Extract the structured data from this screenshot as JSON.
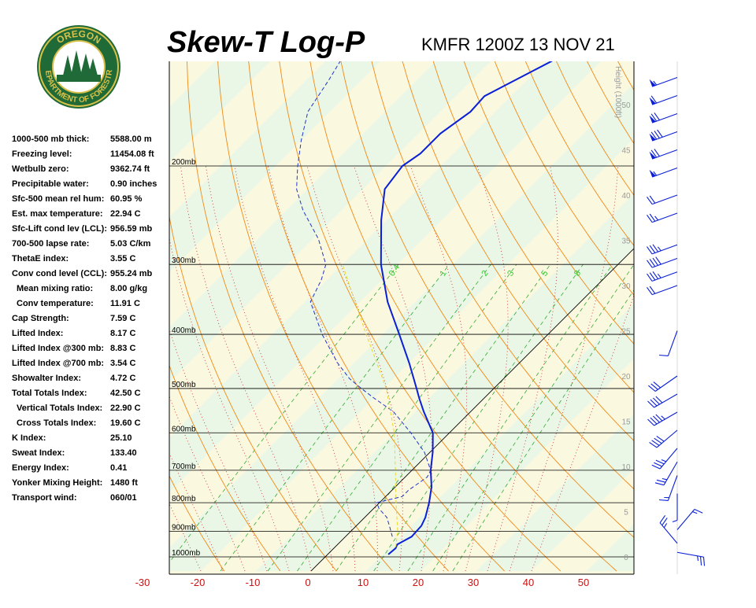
{
  "header": {
    "title": "Skew-T Log-P",
    "station_line": "KMFR 1200Z 13 NOV 21"
  },
  "logo": {
    "top_text": "OREGON",
    "bottom_text": "DEPARTMENT OF FORESTRY",
    "colors": {
      "ring": "#1f6a36",
      "gold": "#d8c04a",
      "inner": "#ffffff"
    }
  },
  "indices": [
    {
      "label": "1000-500 mb thick:",
      "value": "5588.00 m"
    },
    {
      "label": "Freezing level:",
      "value": "11454.08 ft"
    },
    {
      "label": "Wetbulb zero:",
      "value": "9362.74 ft"
    },
    {
      "label": "Precipitable water:",
      "value": "0.90 inches"
    },
    {
      "label": "Sfc-500 mean rel hum:",
      "value": "60.95 %"
    },
    {
      "label": "Est. max temperature:",
      "value": "22.94 C"
    },
    {
      "label": "Sfc-Lift cond lev (LCL):",
      "value": "956.59 mb"
    },
    {
      "label": "700-500 lapse rate:",
      "value": "5.03 C/km"
    },
    {
      "label": "ThetaE index:",
      "value": "3.55 C"
    },
    {
      "label": "Conv cond level (CCL):",
      "value": "955.24 mb"
    },
    {
      "label": "Mean mixing ratio:",
      "value": "8.00 g/kg",
      "indent": true
    },
    {
      "label": "Conv temperature:",
      "value": "11.91 C",
      "indent": true
    },
    {
      "label": "Cap Strength:",
      "value": "7.59 C"
    },
    {
      "label": "Lifted Index:",
      "value": "8.17 C"
    },
    {
      "label": "Lifted Index @300 mb:",
      "value": "8.83 C"
    },
    {
      "label": "Lifted Index @700 mb:",
      "value": "3.54 C"
    },
    {
      "label": "Showalter Index:",
      "value": "4.72 C"
    },
    {
      "label": "Total Totals Index:",
      "value": "42.50 C"
    },
    {
      "label": "Vertical Totals Index:",
      "value": "22.90 C",
      "indent": true
    },
    {
      "label": "Cross Totals Index:",
      "value": "19.60 C",
      "indent": true
    },
    {
      "label": "K Index:",
      "value": "25.10"
    },
    {
      "label": "Sweat Index:",
      "value": "133.40"
    },
    {
      "label": "Energy Index:",
      "value": "0.41"
    },
    {
      "label": "Yonker Mixing Height:",
      "value": "1480 ft"
    },
    {
      "label": "Transport wind:",
      "value": "060/01"
    }
  ],
  "colors": {
    "temperature": "#0a1fd6",
    "dewpoint": "#2233cc",
    "parcel": "#e6d92a",
    "dry_adiabat": "#f08a16",
    "moist_adiabat": "#cc2222",
    "mixing_ratio": "#33aa33",
    "isobar": "#000000",
    "band_green": "#eaf7e6",
    "band_yellow": "#fbf8e0",
    "wind_barb": "#0a1fd6",
    "height_axis": "#9a9a9a"
  },
  "chart_data": {
    "type": "line",
    "title": "Skew-T Log-P",
    "subtitle": "KMFR 1200Z 13 NOV 21",
    "pressure_levels": [
      1000,
      900,
      800,
      700,
      600,
      500,
      400,
      300,
      200
    ],
    "pressure_labels": [
      "1000mb",
      "900mb",
      "800mb",
      "700mb",
      "600mb",
      "500mb",
      "400mb",
      "300mb",
      "200mb"
    ],
    "x_ticks": [
      -30,
      -20,
      -10,
      0,
      10,
      20,
      30,
      40,
      50
    ],
    "x_tick_labels": [
      "-30",
      "-20",
      "-10",
      "0",
      "10",
      "20",
      "30",
      "40",
      "50"
    ],
    "height_axis_label": "Height (1000ft)",
    "height_ticks": [
      0,
      5,
      10,
      15,
      20,
      25,
      30,
      35,
      40,
      45,
      50
    ],
    "height_tick_labels": [
      "0",
      "5",
      "10",
      "15",
      "20",
      "25",
      "30",
      "35",
      "40",
      "45",
      "50"
    ],
    "mixing_ratio_labels": [
      "0.4",
      "1",
      "2",
      "3",
      "5",
      "8"
    ],
    "series": [
      {
        "name": "Temperature",
        "points": [
          {
            "p": 990,
            "t": 11.0
          },
          {
            "p": 965,
            "t": 11.2
          },
          {
            "p": 950,
            "t": 10.8
          },
          {
            "p": 920,
            "t": 12.0
          },
          {
            "p": 880,
            "t": 11.8
          },
          {
            "p": 850,
            "t": 11.0
          },
          {
            "p": 800,
            "t": 9.0
          },
          {
            "p": 750,
            "t": 6.6
          },
          {
            "p": 700,
            "t": 3.4
          },
          {
            "p": 650,
            "t": 0.5
          },
          {
            "p": 600,
            "t": -3.0
          },
          {
            "p": 550,
            "t": -8.5
          },
          {
            "p": 520,
            "t": -11.8
          },
          {
            "p": 500,
            "t": -14.0
          },
          {
            "p": 450,
            "t": -20.0
          },
          {
            "p": 400,
            "t": -27.0
          },
          {
            "p": 350,
            "t": -35.0
          },
          {
            "p": 300,
            "t": -43.0
          },
          {
            "p": 250,
            "t": -51.0
          },
          {
            "p": 220,
            "t": -56.0
          },
          {
            "p": 200,
            "t": -57.0
          },
          {
            "p": 190,
            "t": -56.0
          },
          {
            "p": 175,
            "t": -56.0
          },
          {
            "p": 160,
            "t": -54.5
          },
          {
            "p": 150,
            "t": -54.8
          },
          {
            "p": 140,
            "t": -52.0
          },
          {
            "p": 130,
            "t": -49.0
          },
          {
            "p": 125,
            "t": -48.5
          }
        ]
      },
      {
        "name": "Dewpoint",
        "points": [
          {
            "p": 920,
            "t": 8.5
          },
          {
            "p": 880,
            "t": 6.0
          },
          {
            "p": 850,
            "t": 4.0
          },
          {
            "p": 820,
            "t": 1.0
          },
          {
            "p": 800,
            "t": -0.5
          },
          {
            "p": 780,
            "t": 3.0
          },
          {
            "p": 760,
            "t": 3.0
          },
          {
            "p": 720,
            "t": 4.0
          },
          {
            "p": 700,
            "t": 3.4
          },
          {
            "p": 650,
            "t": -1.0
          },
          {
            "p": 600,
            "t": -7.0
          },
          {
            "p": 550,
            "t": -14.0
          },
          {
            "p": 520,
            "t": -20.0
          },
          {
            "p": 500,
            "t": -24.0
          },
          {
            "p": 480,
            "t": -28.0
          },
          {
            "p": 450,
            "t": -33.0
          },
          {
            "p": 400,
            "t": -41.0
          },
          {
            "p": 350,
            "t": -49.0
          },
          {
            "p": 320,
            "t": -51.0
          },
          {
            "p": 300,
            "t": -53.0
          },
          {
            "p": 270,
            "t": -59.0
          },
          {
            "p": 240,
            "t": -67.0
          },
          {
            "p": 220,
            "t": -72.0
          },
          {
            "p": 200,
            "t": -76.0
          },
          {
            "p": 180,
            "t": -80.0
          },
          {
            "p": 160,
            "t": -84.0
          },
          {
            "p": 140,
            "t": -86.0
          },
          {
            "p": 125,
            "t": -88.0
          }
        ]
      },
      {
        "name": "Parcel",
        "points": [
          {
            "p": 960,
            "t": 11.0
          },
          {
            "p": 900,
            "t": 8.5
          },
          {
            "p": 800,
            "t": 3.0
          },
          {
            "p": 700,
            "t": -3.0
          },
          {
            "p": 600,
            "t": -10.0
          },
          {
            "p": 500,
            "t": -19.5
          },
          {
            "p": 400,
            "t": -33.0
          },
          {
            "p": 300,
            "t": -50.0
          }
        ]
      }
    ],
    "wind_barbs": [
      {
        "height_kft": 0.5,
        "dir_deg": 100,
        "speed_kt": 25
      },
      {
        "height_kft": 1.5,
        "dir_deg": 320,
        "speed_kt": 25
      },
      {
        "height_kft": 3.0,
        "dir_deg": 40,
        "speed_kt": 15
      },
      {
        "height_kft": 7.0,
        "dir_deg": 180,
        "speed_kt": 5
      },
      {
        "height_kft": 9.0,
        "dir_deg": 200,
        "speed_kt": 15
      },
      {
        "height_kft": 10.5,
        "dir_deg": 210,
        "speed_kt": 25
      },
      {
        "height_kft": 12.0,
        "dir_deg": 220,
        "speed_kt": 35
      },
      {
        "height_kft": 14.0,
        "dir_deg": 230,
        "speed_kt": 40
      },
      {
        "height_kft": 16.0,
        "dir_deg": 240,
        "speed_kt": 45
      },
      {
        "height_kft": 18.0,
        "dir_deg": 240,
        "speed_kt": 40
      },
      {
        "height_kft": 20.0,
        "dir_deg": 235,
        "speed_kt": 30
      },
      {
        "height_kft": 25.0,
        "dir_deg": 200,
        "speed_kt": 10
      },
      {
        "height_kft": 30.0,
        "dir_deg": 250,
        "speed_kt": 20
      },
      {
        "height_kft": 31.5,
        "dir_deg": 250,
        "speed_kt": 35
      },
      {
        "height_kft": 33.0,
        "dir_deg": 250,
        "speed_kt": 40
      },
      {
        "height_kft": 34.5,
        "dir_deg": 250,
        "speed_kt": 35
      },
      {
        "height_kft": 38.0,
        "dir_deg": 250,
        "speed_kt": 25
      },
      {
        "height_kft": 40.0,
        "dir_deg": 250,
        "speed_kt": 20
      },
      {
        "height_kft": 43.0,
        "dir_deg": 250,
        "speed_kt": 55
      },
      {
        "height_kft": 45.0,
        "dir_deg": 250,
        "speed_kt": 70
      },
      {
        "height_kft": 47.0,
        "dir_deg": 250,
        "speed_kt": 80
      },
      {
        "height_kft": 49.0,
        "dir_deg": 250,
        "speed_kt": 70
      },
      {
        "height_kft": 51.0,
        "dir_deg": 250,
        "speed_kt": 60
      },
      {
        "height_kft": 53.0,
        "dir_deg": 250,
        "speed_kt": 55
      }
    ]
  }
}
